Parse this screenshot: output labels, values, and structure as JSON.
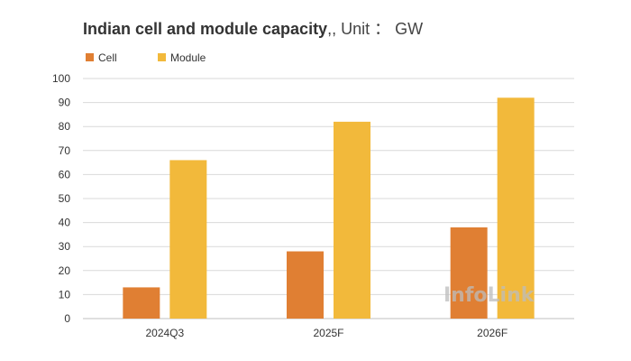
{
  "title": {
    "main": "Indian cell and module capacity",
    "unit": ",, Unit ： GW"
  },
  "watermark": "InfoLink",
  "colors": {
    "cell": "#E07F33",
    "module": "#F2B93B",
    "grid": "#d9d9d9"
  },
  "chart_data": {
    "type": "bar",
    "title": "Indian cell and module capacity,, Unit ： GW",
    "categories": [
      "2024Q3",
      "2025F",
      "2026F"
    ],
    "series": [
      {
        "name": "Cell",
        "values": [
          13,
          28,
          38
        ]
      },
      {
        "name": "Module",
        "values": [
          66,
          82,
          92
        ]
      }
    ],
    "yticks": [
      0,
      10,
      20,
      30,
      40,
      50,
      60,
      70,
      80,
      90,
      100
    ],
    "ylim": [
      0,
      100
    ],
    "xlabel": "",
    "ylabel": "",
    "grid": true,
    "legend": "top-left"
  }
}
